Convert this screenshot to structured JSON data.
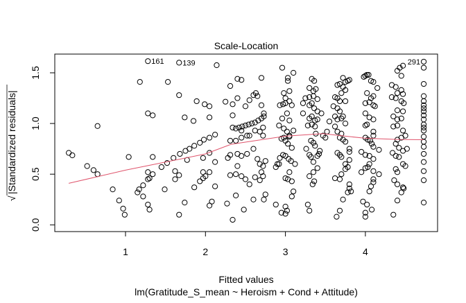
{
  "chart_data": {
    "type": "scatter",
    "title": "Scale-Location",
    "xlabel": "Fitted values",
    "subtitle": "lm(Gratitude_S_mean ~ Heroism + Cond + Attitude)",
    "ylabel": "Standardized residuals",
    "ylabel_prefix": "√",
    "xlim": [
      0.2,
      4.98
    ],
    "ylim": [
      -0.07,
      1.68
    ],
    "x_ticks": [
      1,
      2,
      3,
      4
    ],
    "x_tick_labels": [
      "1",
      "2",
      "3",
      "4"
    ],
    "y_ticks": [
      0,
      0.5,
      1.0,
      1.5
    ],
    "y_tick_labels": [
      "0.0",
      "0.5",
      "1.0",
      "1.5"
    ],
    "smooth_color": "#DF536B",
    "point_color": "#000000",
    "smooth": [
      [
        0.29,
        0.41
      ],
      [
        1,
        0.54
      ],
      [
        1.5,
        0.62
      ],
      [
        2,
        0.7
      ],
      [
        2.32,
        0.795
      ],
      [
        2.7,
        0.84
      ],
      [
        3.0,
        0.875
      ],
      [
        3.47,
        0.9
      ],
      [
        3.75,
        0.875
      ],
      [
        3.99,
        0.855
      ],
      [
        4.4,
        0.843
      ],
      [
        4.73,
        0.84
      ]
    ],
    "labels": [
      {
        "text": "161",
        "x": 1.28,
        "y": 1.615
      },
      {
        "text": "139",
        "x": 1.67,
        "y": 1.6
      },
      {
        "text": "291",
        "x": 4.73,
        "y": 1.61,
        "side": "left"
      }
    ],
    "points": [
      [
        0.29,
        0.71
      ],
      [
        0.335,
        0.686
      ],
      [
        0.52,
        0.58
      ],
      [
        0.6,
        0.54
      ],
      [
        0.65,
        0.5
      ],
      [
        0.65,
        0.975
      ],
      [
        0.84,
        0.35
      ],
      [
        0.92,
        0.24
      ],
      [
        0.97,
        0.16
      ],
      [
        0.99,
        0.1
      ],
      [
        1.04,
        0.67
      ],
      [
        1.18,
        1.41
      ],
      [
        1.28,
        1.615
      ],
      [
        1.67,
        1.6
      ],
      [
        2.14,
        1.575
      ],
      [
        1.28,
        1.1
      ],
      [
        1.34,
        1.08
      ],
      [
        1.53,
        1.41
      ],
      [
        1.67,
        1.28
      ],
      [
        1.74,
        1.06
      ],
      [
        1.85,
        1.025
      ],
      [
        1.89,
        1.22
      ],
      [
        1.99,
        1.19
      ],
      [
        2.05,
        1.17
      ],
      [
        2.05,
        1.06
      ],
      [
        2.25,
        1.215
      ],
      [
        2.31,
        1.37
      ],
      [
        2.34,
        1.19
      ],
      [
        2.34,
        1.08
      ],
      [
        1.34,
        0.67
      ],
      [
        1.28,
        0.52
      ],
      [
        1.15,
        0.32
      ],
      [
        1.17,
        0.35
      ],
      [
        1.22,
        0.39
      ],
      [
        1.22,
        0.28
      ],
      [
        1.28,
        0.2
      ],
      [
        1.3,
        0.15
      ],
      [
        1.28,
        0.45
      ],
      [
        1.3,
        0.46
      ],
      [
        1.34,
        0.5
      ],
      [
        1.45,
        0.57
      ],
      [
        1.52,
        0.61
      ],
      [
        1.6,
        0.66
      ],
      [
        1.68,
        0.7
      ],
      [
        1.75,
        0.73
      ],
      [
        1.8,
        0.75
      ],
      [
        1.86,
        0.78
      ],
      [
        1.93,
        0.81
      ],
      [
        1.98,
        0.84
      ],
      [
        2.05,
        0.86
      ],
      [
        2.12,
        0.89
      ],
      [
        1.77,
        0.64
      ],
      [
        1.62,
        0.53
      ],
      [
        1.62,
        0.45
      ],
      [
        1.67,
        0.49
      ],
      [
        1.49,
        0.35
      ],
      [
        1.74,
        0.22
      ],
      [
        1.67,
        0.1
      ],
      [
        1.86,
        0.37
      ],
      [
        1.93,
        0.43
      ],
      [
        1.97,
        0.46
      ],
      [
        1.97,
        0.52
      ],
      [
        2.0,
        0.48
      ],
      [
        1.97,
        0.66
      ],
      [
        2.05,
        0.52
      ],
      [
        2.05,
        0.71
      ],
      [
        2.12,
        0.62
      ],
      [
        2.12,
        0.38
      ],
      [
        2.05,
        0.19
      ],
      [
        2.08,
        0.23
      ],
      [
        2.27,
        0.21
      ],
      [
        2.34,
        0.05
      ],
      [
        2.31,
        0.83
      ],
      [
        2.28,
        0.66
      ],
      [
        2.31,
        0.69
      ],
      [
        2.31,
        0.49
      ],
      [
        2.34,
        0.96
      ],
      [
        2.38,
        0.95
      ],
      [
        2.42,
        0.96
      ],
      [
        2.46,
        0.97
      ],
      [
        2.5,
        0.98
      ],
      [
        2.54,
        0.99
      ],
      [
        2.58,
        1.0
      ],
      [
        2.62,
        1.01
      ],
      [
        2.66,
        1.03
      ],
      [
        2.7,
        1.05
      ],
      [
        2.73,
        1.07
      ],
      [
        2.38,
        0.83
      ],
      [
        2.45,
        0.86
      ],
      [
        2.52,
        0.88
      ],
      [
        2.4,
        1.44
      ],
      [
        2.45,
        1.43
      ],
      [
        2.7,
        1.45
      ],
      [
        2.4,
        1.25
      ],
      [
        2.55,
        1.23
      ],
      [
        2.6,
        1.28
      ],
      [
        2.65,
        1.27
      ],
      [
        2.7,
        1.18
      ],
      [
        2.5,
        1.17
      ],
      [
        2.63,
        1.3
      ],
      [
        2.73,
        1.1
      ],
      [
        2.72,
        0.96
      ],
      [
        2.68,
        0.92
      ],
      [
        2.62,
        0.93
      ],
      [
        2.72,
        0.88
      ],
      [
        2.6,
        0.75
      ],
      [
        2.52,
        0.7
      ],
      [
        2.4,
        0.7
      ],
      [
        2.45,
        0.68
      ],
      [
        2.65,
        0.65
      ],
      [
        2.68,
        0.6
      ],
      [
        2.72,
        0.58
      ],
      [
        2.7,
        0.52
      ],
      [
        2.4,
        0.58
      ],
      [
        2.38,
        0.5
      ],
      [
        2.45,
        0.48
      ],
      [
        2.5,
        0.45
      ],
      [
        2.55,
        0.4
      ],
      [
        2.62,
        0.47
      ],
      [
        2.68,
        0.44
      ],
      [
        2.72,
        0.48
      ],
      [
        2.75,
        0.3
      ],
      [
        2.38,
        0.29
      ],
      [
        2.48,
        0.15
      ],
      [
        2.6,
        0.25
      ],
      [
        2.73,
        0.25
      ],
      [
        2.55,
        0.88
      ],
      [
        2.45,
        0.93
      ],
      [
        2.75,
        0.63
      ],
      [
        2.96,
        1.55
      ],
      [
        3.03,
        1.45
      ],
      [
        3.03,
        1.42
      ],
      [
        3.1,
        1.5
      ],
      [
        2.98,
        1.3
      ],
      [
        3.05,
        1.32
      ],
      [
        3.0,
        1.25
      ],
      [
        3.05,
        1.22
      ],
      [
        3.08,
        1.18
      ],
      [
        2.93,
        1.18
      ],
      [
        2.97,
        1.19
      ],
      [
        3.0,
        1.2
      ],
      [
        3.02,
        1.1
      ],
      [
        2.96,
        1.05
      ],
      [
        3.05,
        1.03
      ],
      [
        2.92,
        0.98
      ],
      [
        2.98,
        0.95
      ],
      [
        3.02,
        0.92
      ],
      [
        3.05,
        0.88
      ],
      [
        3.1,
        0.93
      ],
      [
        2.95,
        0.85
      ],
      [
        2.98,
        0.86
      ],
      [
        3.0,
        0.83
      ],
      [
        3.05,
        0.87
      ],
      [
        3.03,
        0.8
      ],
      [
        3.08,
        0.76
      ],
      [
        2.97,
        0.69
      ],
      [
        3.0,
        0.68
      ],
      [
        3.04,
        0.65
      ],
      [
        3.07,
        0.63
      ],
      [
        2.93,
        0.66
      ],
      [
        2.9,
        0.6
      ],
      [
        3.05,
        0.52
      ],
      [
        3.08,
        0.43
      ],
      [
        3.0,
        0.46
      ],
      [
        3.03,
        0.45
      ],
      [
        3.1,
        0.33
      ],
      [
        3.08,
        0.28
      ],
      [
        3.0,
        0.18
      ],
      [
        3.02,
        0.14
      ],
      [
        3.0,
        0.11
      ],
      [
        2.95,
        0.12
      ],
      [
        2.88,
        0.2
      ],
      [
        2.88,
        0.57
      ],
      [
        2.92,
        0.6
      ],
      [
        3.12,
        0.6
      ],
      [
        3.33,
        1.44
      ],
      [
        3.36,
        1.42
      ],
      [
        3.3,
        1.35
      ],
      [
        3.35,
        1.32
      ],
      [
        3.38,
        1.34
      ],
      [
        3.25,
        1.25
      ],
      [
        3.3,
        1.26
      ],
      [
        3.35,
        1.27
      ],
      [
        3.4,
        1.24
      ],
      [
        3.3,
        1.18
      ],
      [
        3.33,
        1.2
      ],
      [
        3.36,
        1.15
      ],
      [
        3.4,
        1.12
      ],
      [
        3.22,
        1.1
      ],
      [
        3.3,
        1.05
      ],
      [
        3.33,
        1.07
      ],
      [
        3.37,
        1.03
      ],
      [
        3.4,
        1.04
      ],
      [
        3.28,
        0.98
      ],
      [
        3.33,
        0.99
      ],
      [
        3.37,
        0.97
      ],
      [
        3.38,
        0.9
      ],
      [
        3.32,
        0.83
      ],
      [
        3.35,
        0.81
      ],
      [
        3.37,
        0.78
      ],
      [
        3.26,
        0.75
      ],
      [
        3.4,
        0.68
      ],
      [
        3.42,
        0.7
      ],
      [
        3.3,
        0.69
      ],
      [
        3.32,
        0.67
      ],
      [
        3.35,
        0.62
      ],
      [
        3.3,
        0.48
      ],
      [
        3.35,
        0.52
      ],
      [
        3.4,
        0.56
      ],
      [
        3.36,
        0.43
      ],
      [
        3.34,
        0.4
      ],
      [
        3.28,
        0.2
      ],
      [
        3.3,
        0.14
      ],
      [
        3.43,
        0.73
      ],
      [
        3.47,
        0.88
      ],
      [
        3.5,
        0.86
      ],
      [
        3.45,
        1.1
      ],
      [
        3.52,
        0.92
      ],
      [
        3.22,
        1.2
      ],
      [
        3.72,
        1.45
      ],
      [
        3.75,
        1.41
      ],
      [
        3.78,
        1.42
      ],
      [
        3.8,
        1.43
      ],
      [
        3.65,
        1.38
      ],
      [
        3.68,
        1.39
      ],
      [
        3.72,
        1.36
      ],
      [
        3.75,
        1.33
      ],
      [
        3.7,
        1.3
      ],
      [
        3.62,
        1.26
      ],
      [
        3.65,
        1.25
      ],
      [
        3.68,
        1.22
      ],
      [
        3.75,
        1.22
      ],
      [
        3.65,
        1.15
      ],
      [
        3.68,
        1.12
      ],
      [
        3.72,
        1.07
      ],
      [
        3.62,
        1.07
      ],
      [
        3.65,
        1.04
      ],
      [
        3.7,
        1.05
      ],
      [
        3.75,
        1.0
      ],
      [
        3.62,
        0.97
      ],
      [
        3.65,
        0.92
      ],
      [
        3.7,
        0.9
      ],
      [
        3.68,
        0.86
      ],
      [
        3.72,
        0.84
      ],
      [
        3.75,
        0.82
      ],
      [
        3.8,
        0.75
      ],
      [
        3.8,
        0.72
      ],
      [
        3.65,
        0.71
      ],
      [
        3.68,
        0.69
      ],
      [
        3.7,
        0.67
      ],
      [
        3.75,
        0.6
      ],
      [
        3.8,
        0.64
      ],
      [
        3.78,
        0.57
      ],
      [
        3.75,
        0.55
      ],
      [
        3.7,
        0.5
      ],
      [
        3.68,
        0.45
      ],
      [
        3.62,
        0.46
      ],
      [
        3.8,
        0.4
      ],
      [
        3.8,
        0.36
      ],
      [
        3.78,
        0.32
      ],
      [
        3.72,
        0.25
      ],
      [
        3.68,
        0.14
      ],
      [
        3.64,
        0.08
      ],
      [
        3.55,
        1.02
      ],
      [
        3.6,
        1.17
      ],
      [
        3.82,
        0.33
      ],
      [
        3.98,
        1.46
      ],
      [
        4.0,
        1.47
      ],
      [
        4.02,
        1.48
      ],
      [
        4.04,
        1.48
      ],
      [
        4.07,
        1.42
      ],
      [
        4.1,
        1.41
      ],
      [
        4.15,
        1.35
      ],
      [
        4.02,
        1.3
      ],
      [
        4.07,
        1.25
      ],
      [
        4.1,
        1.27
      ],
      [
        4.0,
        1.2
      ],
      [
        4.05,
        1.21
      ],
      [
        4.1,
        1.18
      ],
      [
        4.12,
        1.17
      ],
      [
        4.0,
        1.1
      ],
      [
        4.05,
        1.06
      ],
      [
        4.1,
        1.04
      ],
      [
        4.0,
        0.98
      ],
      [
        4.02,
        0.99
      ],
      [
        4.1,
        0.92
      ],
      [
        4.1,
        0.88
      ],
      [
        4.0,
        0.86
      ],
      [
        4.03,
        0.84
      ],
      [
        4.06,
        0.83
      ],
      [
        4.08,
        0.8
      ],
      [
        4.1,
        0.77
      ],
      [
        4.17,
        0.74
      ],
      [
        3.95,
        0.72
      ],
      [
        4.0,
        0.69
      ],
      [
        4.05,
        0.68
      ],
      [
        4.1,
        0.65
      ],
      [
        4.05,
        0.6
      ],
      [
        4.0,
        0.56
      ],
      [
        4.03,
        0.57
      ],
      [
        4.1,
        0.53
      ],
      [
        3.95,
        0.52
      ],
      [
        4.1,
        0.45
      ],
      [
        4.1,
        0.42
      ],
      [
        4.17,
        0.5
      ],
      [
        4.07,
        0.38
      ],
      [
        4.05,
        0.33
      ],
      [
        3.97,
        0.23
      ],
      [
        4.02,
        0.2
      ],
      [
        4.0,
        0.12
      ],
      [
        4.0,
        0.08
      ],
      [
        4.08,
        0.15
      ],
      [
        4.43,
        1.55
      ],
      [
        4.47,
        1.57
      ],
      [
        4.4,
        1.52
      ],
      [
        4.45,
        1.47
      ],
      [
        4.33,
        1.38
      ],
      [
        4.38,
        1.36
      ],
      [
        4.45,
        1.33
      ],
      [
        4.4,
        1.3
      ],
      [
        4.47,
        1.29
      ],
      [
        4.33,
        1.26
      ],
      [
        4.38,
        1.25
      ],
      [
        4.45,
        1.22
      ],
      [
        4.48,
        1.2
      ],
      [
        4.4,
        1.13
      ],
      [
        4.47,
        1.12
      ],
      [
        4.35,
        1.07
      ],
      [
        4.4,
        1.04
      ],
      [
        4.45,
        1.05
      ],
      [
        4.35,
        0.97
      ],
      [
        4.4,
        0.98
      ],
      [
        4.47,
        0.93
      ],
      [
        4.5,
        0.88
      ],
      [
        4.45,
        0.86
      ],
      [
        4.4,
        0.84
      ],
      [
        4.38,
        0.8
      ],
      [
        4.42,
        0.76
      ],
      [
        4.47,
        0.73
      ],
      [
        4.52,
        0.75
      ],
      [
        4.34,
        0.71
      ],
      [
        4.38,
        0.68
      ],
      [
        4.42,
        0.67
      ],
      [
        4.47,
        0.6
      ],
      [
        4.5,
        0.58
      ],
      [
        4.38,
        0.55
      ],
      [
        4.4,
        0.52
      ],
      [
        4.36,
        0.44
      ],
      [
        4.4,
        0.4
      ],
      [
        4.47,
        0.37
      ],
      [
        4.48,
        0.36
      ],
      [
        4.45,
        0.32
      ],
      [
        4.4,
        0.24
      ],
      [
        4.35,
        0.1
      ],
      [
        4.73,
        1.61
      ],
      [
        4.73,
        1.55
      ],
      [
        4.73,
        1.39
      ],
      [
        4.73,
        1.27
      ],
      [
        4.73,
        1.22
      ],
      [
        4.73,
        1.18
      ],
      [
        4.73,
        1.15
      ],
      [
        4.73,
        1.12
      ],
      [
        4.73,
        1.08
      ],
      [
        4.73,
        1.04
      ],
      [
        4.73,
        0.99
      ],
      [
        4.73,
        0.96
      ],
      [
        4.73,
        0.93
      ],
      [
        4.73,
        0.87
      ],
      [
        4.73,
        0.82
      ],
      [
        4.73,
        0.77
      ],
      [
        4.73,
        0.7
      ],
      [
        4.73,
        0.62
      ],
      [
        4.73,
        0.53
      ],
      [
        4.73,
        0.44
      ],
      [
        4.73,
        0.22
      ]
    ]
  }
}
